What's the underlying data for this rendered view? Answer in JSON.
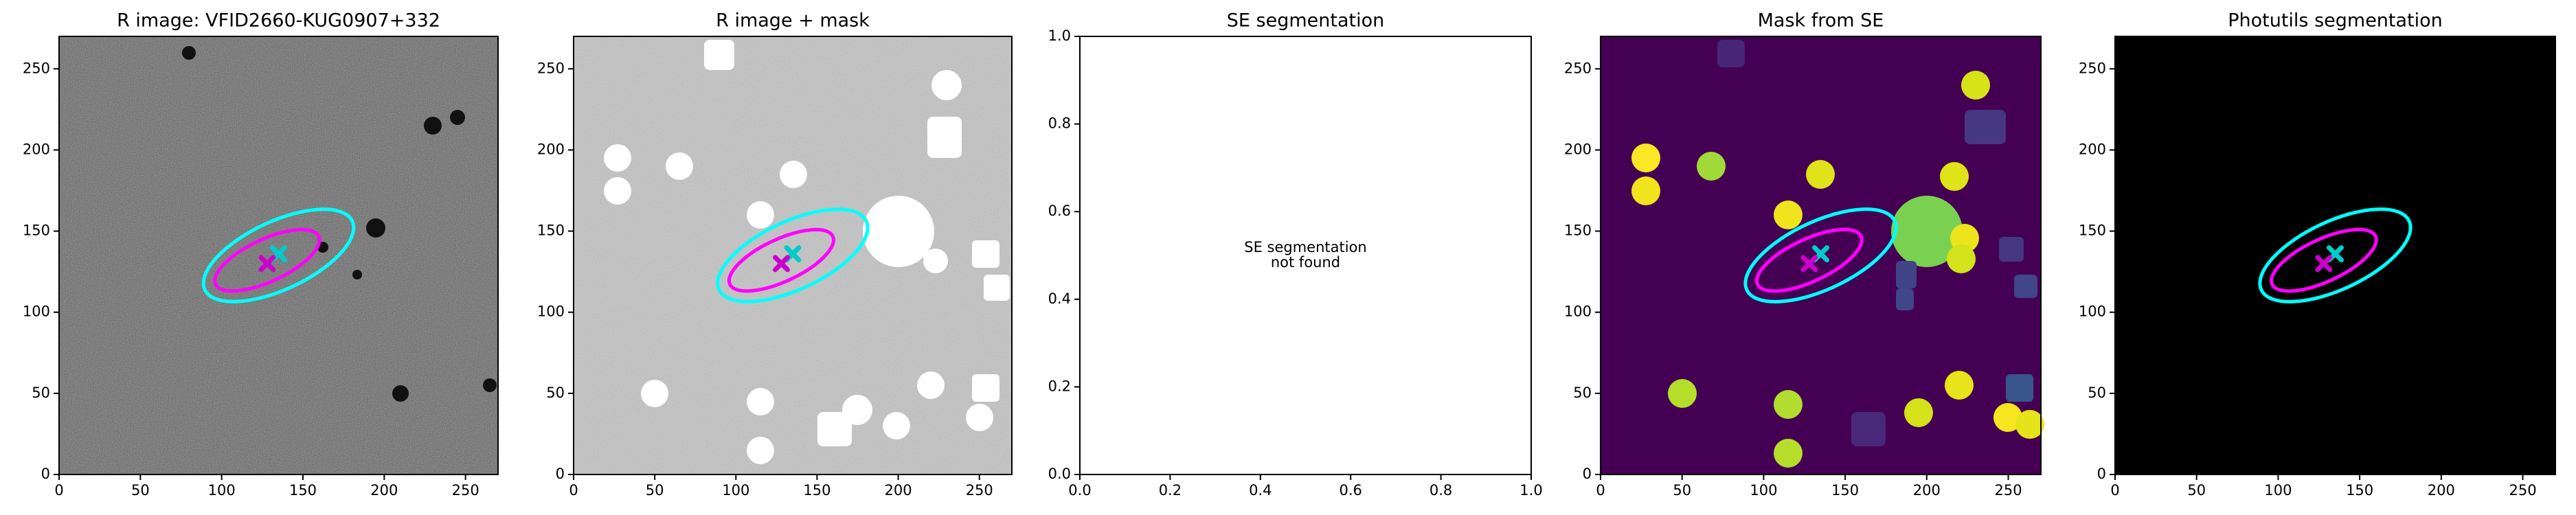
{
  "chart_data": [
    {
      "type": "image",
      "title": "R image: VFID2660-KUG0907+332",
      "background": "#5a5a5a",
      "noise": true,
      "xlim": [
        0,
        270
      ],
      "ylim": [
        0,
        270
      ],
      "xticks": [
        0,
        50,
        100,
        150,
        200,
        250
      ],
      "yticks": [
        0,
        50,
        100,
        150,
        200,
        250
      ],
      "ellipses": [
        {
          "cx": 135,
          "cy": 135,
          "width": 100,
          "height": 42,
          "angle": 25,
          "color": "#00ffff"
        },
        {
          "cx": 128,
          "cy": 132,
          "width": 70,
          "height": 26,
          "angle": 25,
          "color": "#ff00ff"
        }
      ],
      "markers": [
        {
          "x": 135,
          "y": 136,
          "color": "#00cccc"
        },
        {
          "x": 128,
          "y": 130,
          "color": "#cc00cc"
        }
      ]
    },
    {
      "type": "image",
      "title": "R image + mask",
      "background": "#c4c4c4",
      "noise": true,
      "xlim": [
        0,
        270
      ],
      "ylim": [
        0,
        270
      ],
      "xticks": [
        0,
        50,
        100,
        150,
        200,
        250
      ],
      "yticks": [
        0,
        50,
        100,
        150,
        200,
        250
      ],
      "ellipses": [
        {
          "cx": 135,
          "cy": 135,
          "width": 100,
          "height": 42,
          "angle": 25,
          "color": "#00ffff"
        },
        {
          "cx": 128,
          "cy": 132,
          "width": 70,
          "height": 26,
          "angle": 25,
          "color": "#ff00ff"
        }
      ],
      "markers": [
        {
          "x": 135,
          "y": 136,
          "color": "#00cccc"
        },
        {
          "x": 128,
          "y": 130,
          "color": "#cc00cc"
        }
      ]
    },
    {
      "type": "empty",
      "title": "SE segmentation",
      "background": "#ffffff",
      "noise": false,
      "xlim": [
        0,
        1
      ],
      "ylim": [
        0,
        1
      ],
      "xticks": [
        {
          "value": 0,
          "label": "0.0"
        },
        0.2,
        0.4,
        0.6,
        0.8,
        {
          "value": 1,
          "label": "1.0"
        }
      ],
      "yticks": [
        {
          "value": 0,
          "label": "0.0"
        },
        0.2,
        0.4,
        0.6,
        0.8,
        {
          "value": 1,
          "label": "1.0"
        }
      ],
      "annotation": [
        "SE segmentation",
        "not found"
      ]
    },
    {
      "type": "image",
      "title": "Mask from SE",
      "background": "#440154",
      "noise": false,
      "xlim": [
        0,
        270
      ],
      "ylim": [
        0,
        270
      ],
      "xticks": [
        0,
        50,
        100,
        150,
        200,
        250
      ],
      "yticks": [
        0,
        50,
        100,
        150,
        200,
        250
      ],
      "ellipses": [
        {
          "cx": 135,
          "cy": 135,
          "width": 100,
          "height": 42,
          "angle": 25,
          "color": "#00ffff"
        },
        {
          "cx": 128,
          "cy": 132,
          "width": 70,
          "height": 26,
          "angle": 25,
          "color": "#ff00ff"
        }
      ],
      "markers": [
        {
          "x": 135,
          "y": 136,
          "color": "#00cccc"
        },
        {
          "x": 128,
          "y": 130,
          "color": "#cc00cc"
        }
      ]
    },
    {
      "type": "image",
      "title": "Photutils segmentation",
      "background": "#000000",
      "noise": false,
      "xlim": [
        0,
        270
      ],
      "ylim": [
        0,
        270
      ],
      "xticks": [
        0,
        50,
        100,
        150,
        200,
        250
      ],
      "yticks": [
        0,
        50,
        100,
        150,
        200,
        250
      ],
      "ellipses": [
        {
          "cx": 135,
          "cy": 135,
          "width": 100,
          "height": 42,
          "angle": 25,
          "color": "#00ffff"
        },
        {
          "cx": 128,
          "cy": 132,
          "width": 70,
          "height": 26,
          "angle": 25,
          "color": "#ff00ff"
        }
      ],
      "markers": [
        {
          "x": 135,
          "y": 136,
          "color": "#00cccc"
        },
        {
          "x": 128,
          "y": 130,
          "color": "#cc00cc"
        }
      ]
    }
  ]
}
